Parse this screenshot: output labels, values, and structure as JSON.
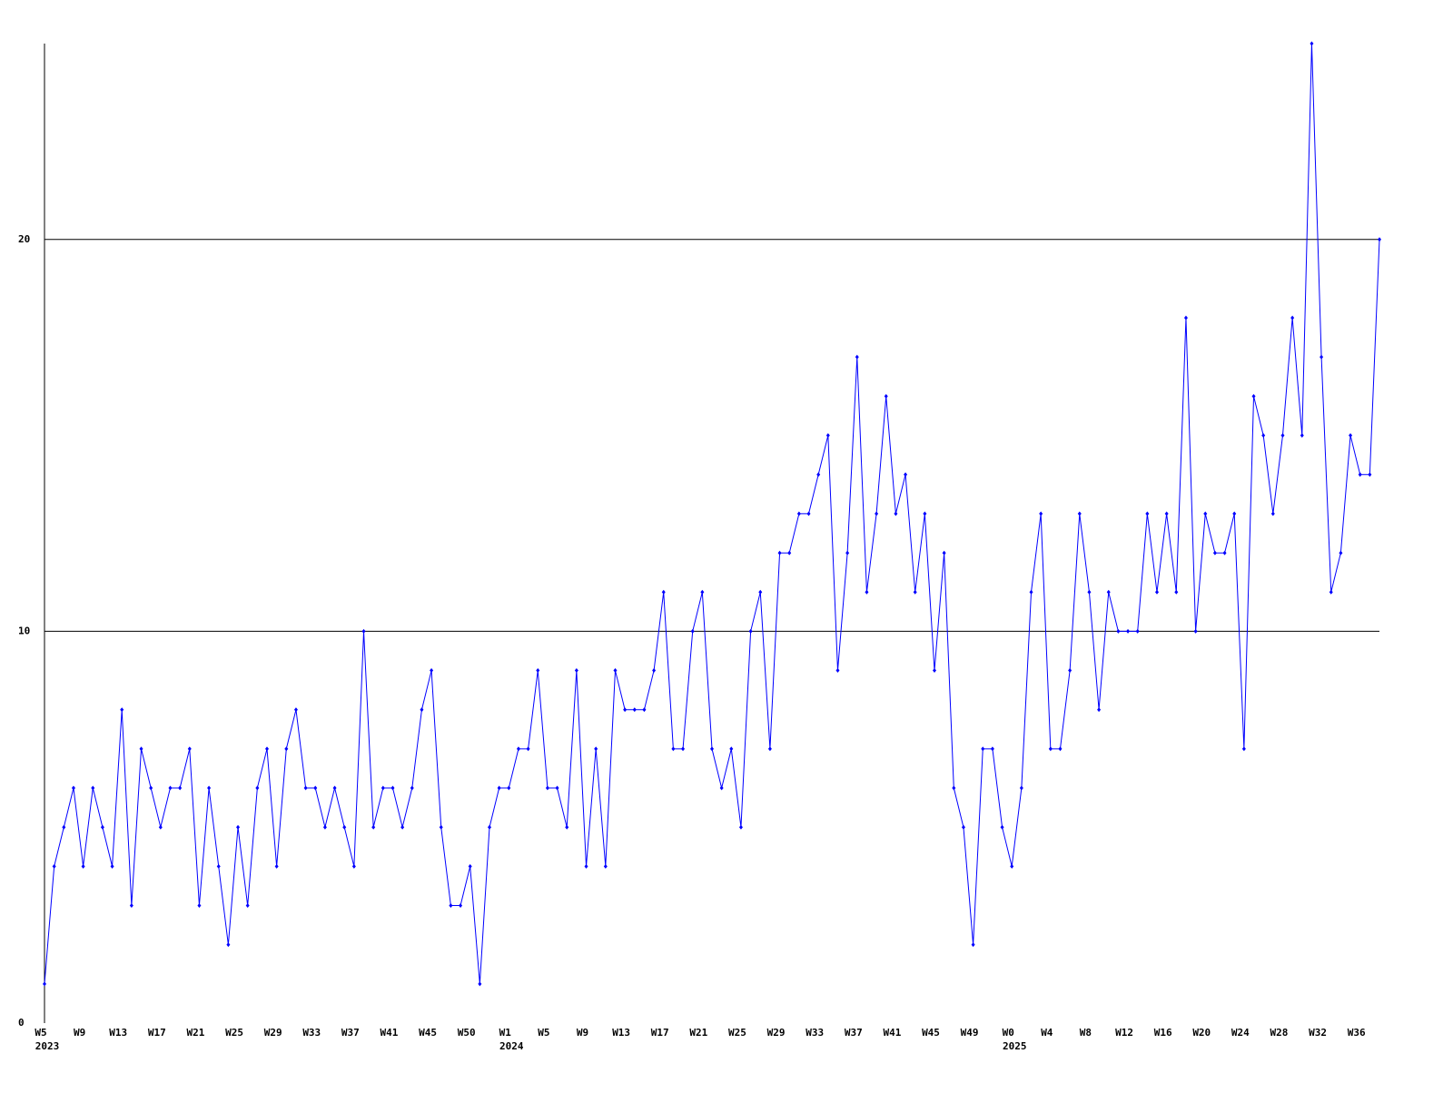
{
  "chart_data": {
    "type": "line",
    "categories": [
      "W5",
      null,
      null,
      null,
      "W9",
      null,
      null,
      null,
      "W13",
      null,
      null,
      null,
      "W17",
      null,
      null,
      null,
      "W21",
      null,
      null,
      null,
      "W25",
      null,
      null,
      null,
      "W29",
      null,
      null,
      null,
      "W33",
      null,
      null,
      null,
      "W37",
      null,
      null,
      null,
      "W41",
      null,
      null,
      null,
      "W45",
      null,
      null,
      null,
      "W50",
      null,
      null,
      null,
      "W1",
      null,
      null,
      null,
      "W5",
      null,
      null,
      null,
      "W9",
      null,
      null,
      null,
      "W13",
      null,
      null,
      null,
      "W17",
      null,
      null,
      null,
      "W21",
      null,
      null,
      null,
      "W25",
      null,
      null,
      null,
      "W29",
      null,
      null,
      null,
      "W33",
      null,
      null,
      null,
      "W37",
      null,
      null,
      null,
      "W41",
      null,
      null,
      null,
      "W45",
      null,
      null,
      null,
      "W49",
      null,
      null,
      null,
      "W0",
      null,
      null,
      null,
      "W4",
      null,
      null,
      null,
      "W8",
      null,
      null,
      null,
      "W12",
      null,
      null,
      null,
      "W16",
      null,
      null,
      null,
      "W20",
      null,
      null,
      null,
      "W24",
      null,
      null,
      null,
      "W28",
      null,
      null,
      null,
      "W32",
      null,
      null,
      null,
      "W36",
      null,
      null
    ],
    "category_groups": [
      "2023",
      null,
      null,
      null,
      null,
      null,
      null,
      null,
      null,
      null,
      null,
      null,
      null,
      null,
      null,
      null,
      null,
      null,
      null,
      null,
      null,
      null,
      null,
      null,
      null,
      null,
      null,
      null,
      null,
      null,
      null,
      null,
      null,
      null,
      null,
      null,
      null,
      null,
      null,
      null,
      null,
      null,
      null,
      null,
      null,
      null,
      null,
      null,
      "2024",
      null,
      null,
      null,
      null,
      null,
      null,
      null,
      null,
      null,
      null,
      null,
      null,
      null,
      null,
      null,
      null,
      null,
      null,
      null,
      null,
      null,
      null,
      null,
      null,
      null,
      null,
      null,
      null,
      null,
      null,
      null,
      null,
      null,
      null,
      null,
      null,
      null,
      null,
      null,
      null,
      null,
      null,
      null,
      null,
      null,
      null,
      null,
      null,
      null,
      null,
      null,
      "2025",
      null,
      null,
      null,
      null,
      null,
      null,
      null,
      null,
      null,
      null,
      null,
      null,
      null,
      null,
      null,
      null,
      null,
      null,
      null,
      null,
      null,
      null,
      null,
      null,
      null,
      null,
      null,
      null,
      null,
      null,
      null,
      null,
      null,
      null,
      null,
      null,
      null
    ],
    "series": [
      {
        "color": "#0000ff",
        "values": [
          1,
          4,
          5,
          6,
          4,
          6,
          5,
          4,
          8,
          3,
          7,
          6,
          5,
          6,
          6,
          7,
          3,
          6,
          4,
          2,
          5,
          3,
          6,
          7,
          4,
          7,
          8,
          6,
          6,
          5,
          6,
          5,
          4,
          10,
          5,
          6,
          6,
          5,
          6,
          8,
          9,
          5,
          3,
          3,
          4,
          1,
          5,
          6,
          6,
          7,
          7,
          9,
          6,
          6,
          5,
          9,
          4,
          7,
          4,
          9,
          8,
          8,
          8,
          9,
          11,
          7,
          7,
          10,
          11,
          7,
          6,
          7,
          5,
          10,
          11,
          7,
          12,
          12,
          13,
          13,
          14,
          15,
          9,
          12,
          17,
          11,
          13,
          16,
          13,
          14,
          11,
          13,
          9,
          12,
          6,
          5,
          2,
          7,
          7,
          5,
          4,
          6,
          11,
          13,
          7,
          7,
          9,
          13,
          11,
          8,
          11,
          10,
          10,
          10,
          13,
          11,
          13,
          11,
          18,
          10,
          13,
          12,
          12,
          13,
          7,
          16,
          15,
          13,
          15,
          18,
          15,
          25,
          17,
          11,
          12,
          15,
          14,
          14,
          20
        ]
      }
    ],
    "ylim": [
      0,
      25
    ],
    "yticks": [
      0,
      10,
      20
    ],
    "grid": true
  }
}
